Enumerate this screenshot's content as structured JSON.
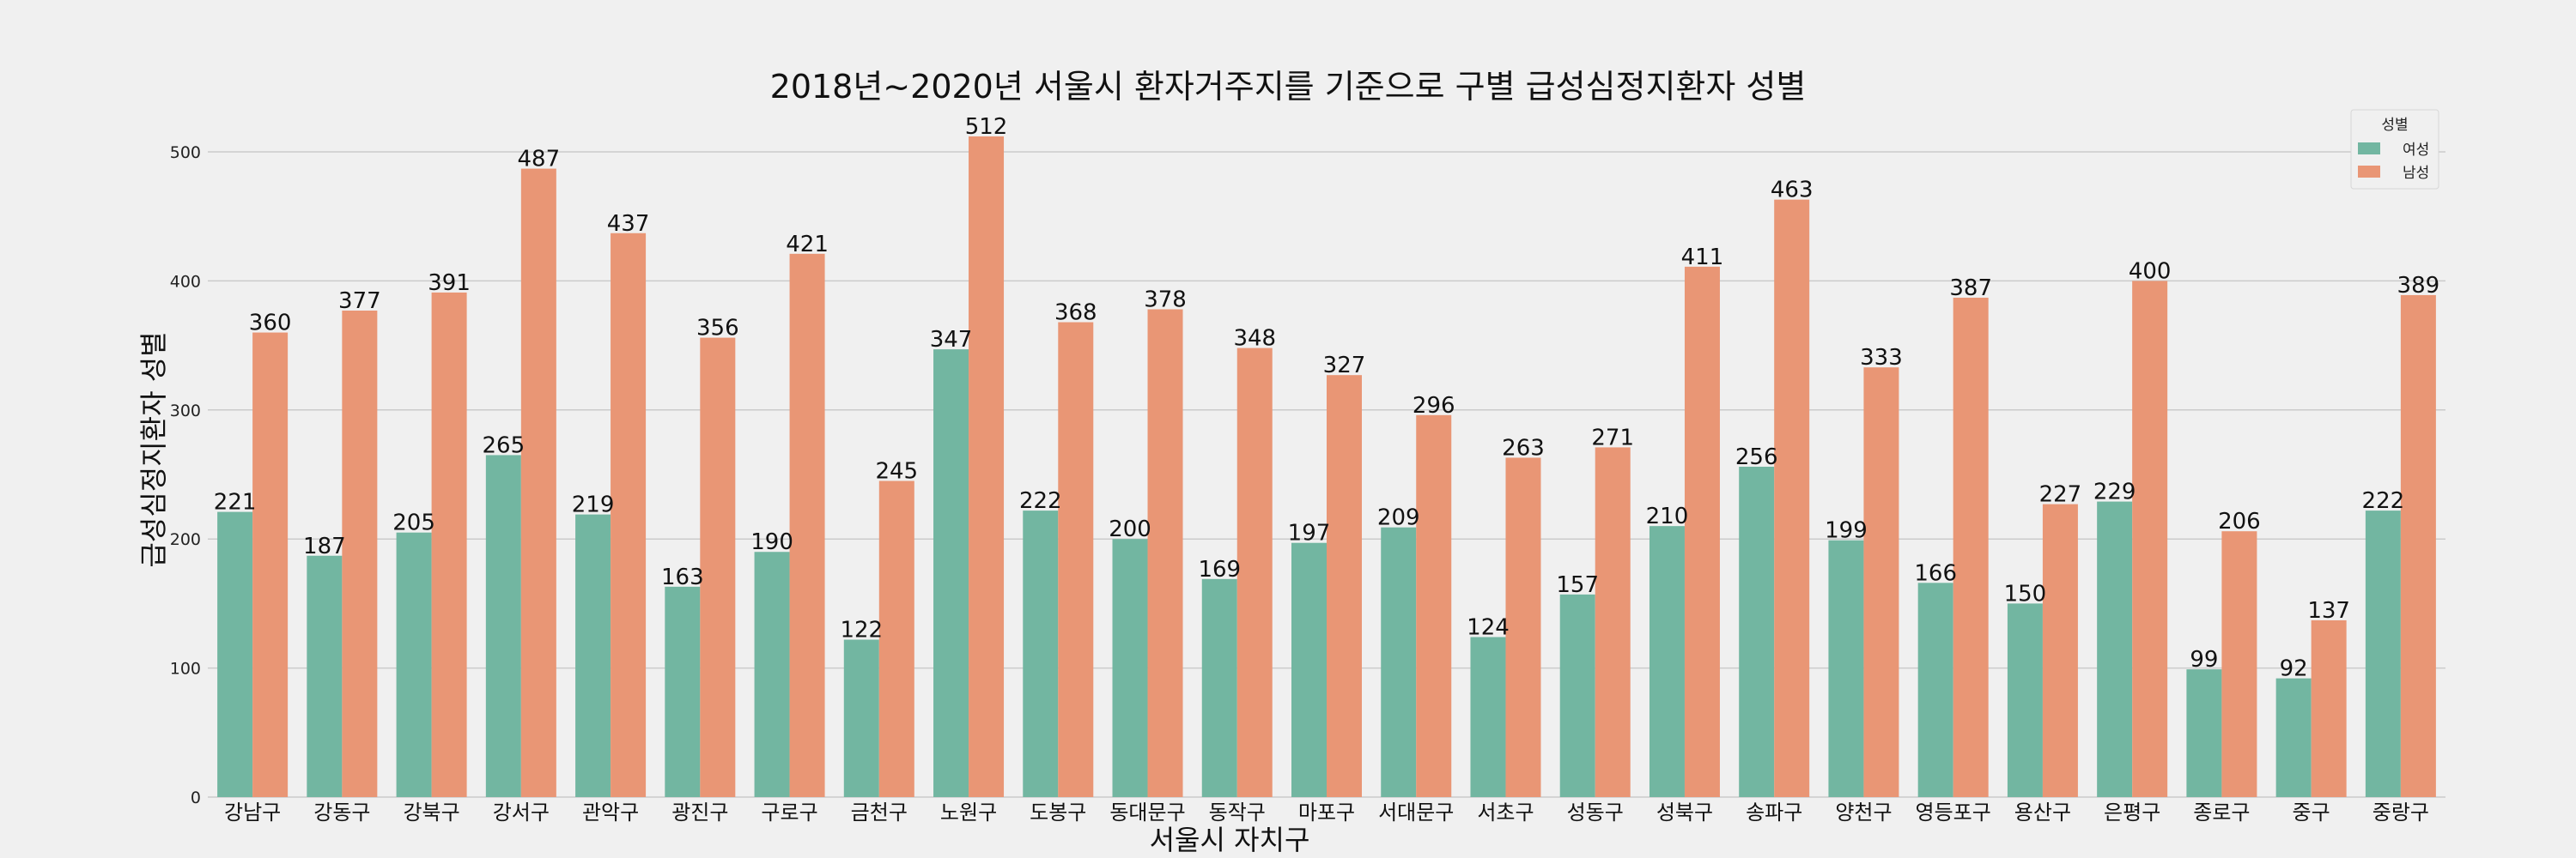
{
  "chart_data": {
    "type": "bar",
    "title": "2018년~2020년 서울시 환자거주지를 기준으로 구별 급성심정지환자 성별",
    "xlabel": "서울시 자치구",
    "ylabel": "급성심정지환자 성별",
    "ylim": [
      0,
      520
    ],
    "yticks": [
      0,
      100,
      200,
      300,
      400,
      500
    ],
    "grid": true,
    "legend": {
      "title": "성별",
      "placement": "top-right"
    },
    "categories": [
      "강남구",
      "강동구",
      "강북구",
      "강서구",
      "관악구",
      "광진구",
      "구로구",
      "금천구",
      "노원구",
      "도봉구",
      "동대문구",
      "동작구",
      "마포구",
      "서대문구",
      "서초구",
      "성동구",
      "성북구",
      "송파구",
      "양천구",
      "영등포구",
      "용산구",
      "은평구",
      "종로구",
      "중구",
      "중랑구"
    ],
    "series": [
      {
        "name": "여성",
        "color": "#72b6a1",
        "values": [
          221,
          187,
          205,
          265,
          219,
          163,
          190,
          122,
          347,
          222,
          200,
          169,
          197,
          209,
          124,
          157,
          210,
          256,
          199,
          166,
          150,
          229,
          99,
          92,
          222
        ]
      },
      {
        "name": "남성",
        "color": "#e99675",
        "values": [
          360,
          377,
          391,
          487,
          437,
          356,
          421,
          245,
          512,
          368,
          378,
          348,
          327,
          296,
          263,
          271,
          411,
          463,
          333,
          387,
          227,
          400,
          206,
          137,
          389
        ]
      }
    ]
  }
}
